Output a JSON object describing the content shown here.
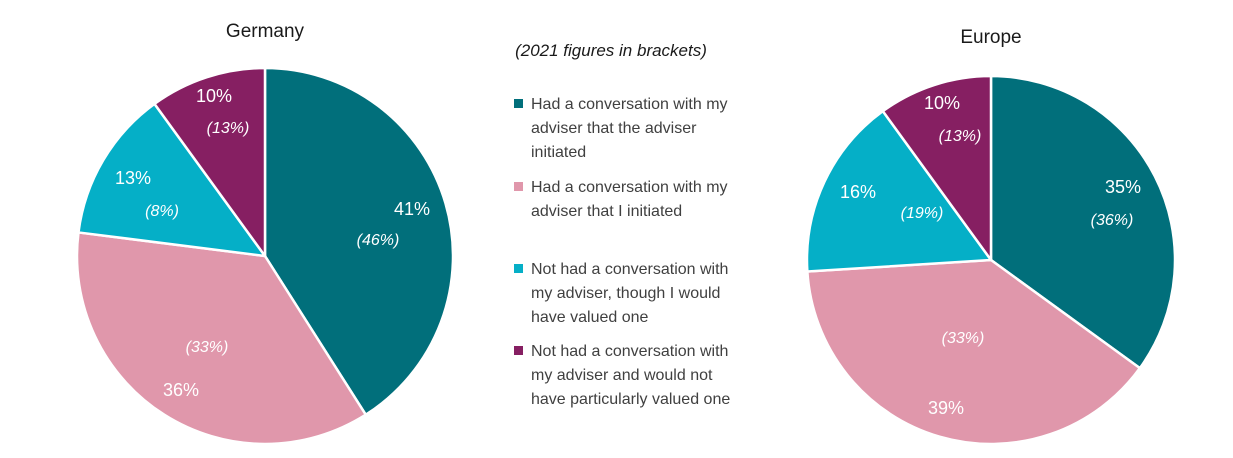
{
  "note": "(2021 figures in brackets)",
  "colors": {
    "adviser_initiated": "#016f7b",
    "i_initiated": "#e097ab",
    "not_had_would_value": "#05afc7",
    "not_had_would_not_value": "#861f62"
  },
  "legend": [
    {
      "key": "adviser_initiated",
      "lines": [
        "Had a conversation with my",
        "adviser that the adviser",
        "initiated"
      ]
    },
    {
      "key": "i_initiated",
      "lines": [
        "Had a conversation with my",
        "adviser that I initiated"
      ]
    },
    {
      "key": "not_had_would_value",
      "lines": [
        "Not had a conversation with",
        "my adviser, though I would",
        "have valued one"
      ]
    },
    {
      "key": "not_had_would_not_value",
      "lines": [
        "Not had a conversation with",
        "my adviser and would not",
        "have particularly valued one"
      ]
    }
  ],
  "chart_data": [
    {
      "type": "pie",
      "title": "Germany",
      "categories": [
        "adviser_initiated",
        "i_initiated",
        "not_had_would_value",
        "not_had_would_not_value"
      ],
      "values": [
        41,
        36,
        13,
        10
      ],
      "values_2021": [
        46,
        33,
        8,
        13
      ],
      "labels": [
        "41%",
        "36%",
        "13%",
        "10%"
      ],
      "labels_2021": [
        "(46%)",
        "(33%)",
        "(8%)",
        "(13%)"
      ]
    },
    {
      "type": "pie",
      "title": "Europe",
      "categories": [
        "adviser_initiated",
        "i_initiated",
        "not_had_would_value",
        "not_had_would_not_value"
      ],
      "values": [
        35,
        39,
        16,
        10
      ],
      "values_2021": [
        36,
        33,
        19,
        13
      ],
      "labels": [
        "35%",
        "39%",
        "16%",
        "10%"
      ],
      "labels_2021": [
        "(36%)",
        "(33%)",
        "(19%)",
        "(13%)"
      ]
    }
  ]
}
